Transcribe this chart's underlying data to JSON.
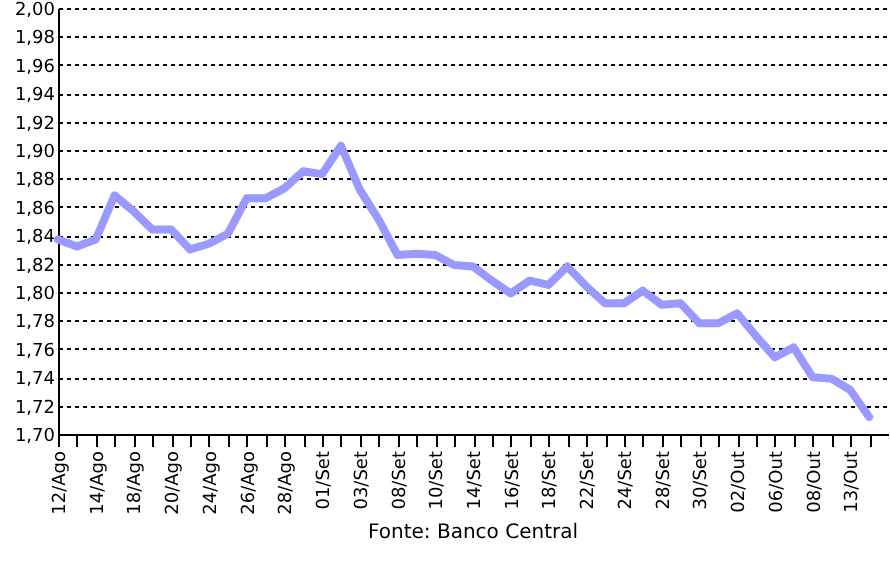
{
  "chart_data": {
    "type": "line",
    "categories": [
      "12/Ago",
      null,
      "14/Ago",
      null,
      "18/Ago",
      null,
      "20/Ago",
      null,
      "24/Ago",
      null,
      "26/Ago",
      null,
      "28/Ago",
      null,
      "01/Set",
      null,
      "03/Set",
      null,
      "08/Set",
      null,
      "10/Set",
      null,
      "14/Set",
      null,
      "16/Set",
      null,
      "18/Set",
      null,
      "22/Set",
      null,
      "24/Set",
      null,
      "28/Set",
      null,
      "30/Set",
      null,
      "02/Out",
      null,
      "06/Out",
      null,
      "08/Out",
      null,
      "13/Out",
      null
    ],
    "series": [
      {
        "color": "#9999ff",
        "values": [
          1.837,
          1.832,
          1.837,
          1.868,
          1.857,
          1.844,
          1.844,
          1.83,
          1.834,
          1.841,
          1.866,
          1.866,
          1.873,
          1.885,
          1.883,
          1.903,
          1.872,
          1.851,
          1.826,
          1.827,
          1.826,
          1.819,
          1.818,
          1.808,
          1.799,
          1.808,
          1.805,
          1.818,
          1.804,
          1.792,
          1.792,
          1.801,
          1.791,
          1.792,
          1.778,
          1.778,
          1.785,
          1.769,
          1.754,
          1.761,
          1.74,
          1.739,
          1.731,
          1.712
        ]
      }
    ],
    "ylim": [
      1.7,
      2.0
    ],
    "yticks": [
      {
        "value": 1.7,
        "label": "1,70"
      },
      {
        "value": 1.72,
        "label": "1,72"
      },
      {
        "value": 1.74,
        "label": "1,74"
      },
      {
        "value": 1.76,
        "label": "1,76"
      },
      {
        "value": 1.78,
        "label": "1,78"
      },
      {
        "value": 1.8,
        "label": "1,80"
      },
      {
        "value": 1.82,
        "label": "1,82"
      },
      {
        "value": 1.84,
        "label": "1,84"
      },
      {
        "value": 1.86,
        "label": "1,86"
      },
      {
        "value": 1.88,
        "label": "1,88"
      },
      {
        "value": 1.9,
        "label": "1,90"
      },
      {
        "value": 1.92,
        "label": "1,92"
      },
      {
        "value": 1.94,
        "label": "1,94"
      },
      {
        "value": 1.96,
        "label": "1,96"
      },
      {
        "value": 1.98,
        "label": "1,98"
      },
      {
        "value": 2.0,
        "label": "2,00"
      }
    ],
    "grid": "y",
    "marker": "none",
    "line_style": "solid",
    "annotations": [
      "Fonte: Banco Central"
    ]
  }
}
